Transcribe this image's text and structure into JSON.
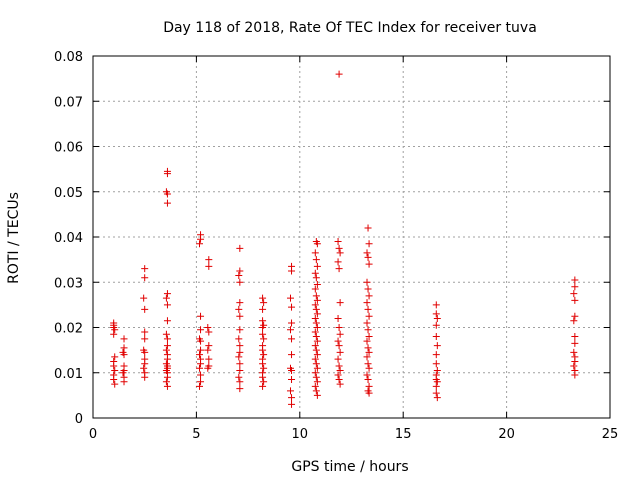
{
  "chart_data": {
    "type": "scatter",
    "title": "Day 118 of 2018, Rate Of TEC Index for receiver tuva",
    "xlabel": "GPS time / hours",
    "ylabel": "ROTI / TECUs",
    "xlim": [
      0,
      25
    ],
    "ylim": [
      0,
      0.08
    ],
    "xticks": [
      0,
      5,
      10,
      15,
      20,
      25
    ],
    "yticks": [
      0,
      0.01,
      0.02,
      0.03,
      0.04,
      0.05,
      0.06,
      0.07,
      0.08
    ],
    "xtick_labels": [
      "0",
      "5",
      "10",
      "15",
      "20",
      "25"
    ],
    "ytick_labels": [
      "0",
      "0.01",
      "0.02",
      "0.03",
      "0.04",
      "0.05",
      "0.06",
      "0.07",
      "0.08"
    ],
    "grid": true,
    "marker": "+",
    "color": "#e00000",
    "series": [
      {
        "points": [
          [
            1.0,
            0.0205
          ],
          [
            1.0,
            0.02
          ],
          [
            1.05,
            0.0195
          ],
          [
            1.0,
            0.0185
          ],
          [
            1.05,
            0.0135
          ],
          [
            1.0,
            0.0125
          ],
          [
            1.0,
            0.0115
          ],
          [
            1.05,
            0.0105
          ],
          [
            1.0,
            0.0095
          ],
          [
            1.0,
            0.0085
          ],
          [
            1.05,
            0.0075
          ],
          [
            1.0,
            0.021
          ],
          [
            1.5,
            0.0175
          ],
          [
            1.5,
            0.0155
          ],
          [
            1.45,
            0.0145
          ],
          [
            1.5,
            0.014
          ],
          [
            1.5,
            0.0115
          ],
          [
            1.5,
            0.0105
          ],
          [
            1.45,
            0.01
          ],
          [
            1.5,
            0.009
          ],
          [
            1.5,
            0.008
          ],
          [
            2.5,
            0.033
          ],
          [
            2.5,
            0.031
          ],
          [
            2.45,
            0.0265
          ],
          [
            2.5,
            0.024
          ],
          [
            2.5,
            0.019
          ],
          [
            2.5,
            0.0175
          ],
          [
            2.45,
            0.015
          ],
          [
            2.5,
            0.0145
          ],
          [
            2.5,
            0.013
          ],
          [
            2.5,
            0.012
          ],
          [
            2.45,
            0.011
          ],
          [
            2.5,
            0.01
          ],
          [
            2.5,
            0.009
          ],
          [
            3.6,
            0.0545
          ],
          [
            3.6,
            0.054
          ],
          [
            3.55,
            0.05
          ],
          [
            3.6,
            0.0495
          ],
          [
            3.6,
            0.0475
          ],
          [
            3.6,
            0.0275
          ],
          [
            3.55,
            0.0265
          ],
          [
            3.6,
            0.025
          ],
          [
            3.6,
            0.0215
          ],
          [
            3.55,
            0.0185
          ],
          [
            3.6,
            0.0175
          ],
          [
            3.6,
            0.016
          ],
          [
            3.55,
            0.015
          ],
          [
            3.6,
            0.014
          ],
          [
            3.6,
            0.013
          ],
          [
            3.55,
            0.012
          ],
          [
            3.6,
            0.0115
          ],
          [
            3.6,
            0.011
          ],
          [
            3.55,
            0.0105
          ],
          [
            3.6,
            0.01
          ],
          [
            3.6,
            0.009
          ],
          [
            3.55,
            0.008
          ],
          [
            3.6,
            0.007
          ],
          [
            5.2,
            0.0405
          ],
          [
            5.2,
            0.0395
          ],
          [
            5.15,
            0.0385
          ],
          [
            5.2,
            0.0225
          ],
          [
            5.2,
            0.0195
          ],
          [
            5.15,
            0.0175
          ],
          [
            5.2,
            0.017
          ],
          [
            5.2,
            0.015
          ],
          [
            5.15,
            0.014
          ],
          [
            5.2,
            0.013
          ],
          [
            5.2,
            0.012
          ],
          [
            5.15,
            0.011
          ],
          [
            5.2,
            0.0095
          ],
          [
            5.2,
            0.008
          ],
          [
            5.15,
            0.007
          ],
          [
            5.6,
            0.035
          ],
          [
            5.6,
            0.0335
          ],
          [
            5.55,
            0.02
          ],
          [
            5.6,
            0.019
          ],
          [
            5.6,
            0.016
          ],
          [
            5.55,
            0.015
          ],
          [
            5.6,
            0.013
          ],
          [
            5.6,
            0.0115
          ],
          [
            5.55,
            0.011
          ],
          [
            7.1,
            0.0375
          ],
          [
            7.1,
            0.0325
          ],
          [
            7.05,
            0.0315
          ],
          [
            7.1,
            0.03
          ],
          [
            7.1,
            0.0255
          ],
          [
            7.05,
            0.024
          ],
          [
            7.1,
            0.0225
          ],
          [
            7.1,
            0.0195
          ],
          [
            7.05,
            0.0175
          ],
          [
            7.1,
            0.016
          ],
          [
            7.1,
            0.0145
          ],
          [
            7.05,
            0.0135
          ],
          [
            7.1,
            0.012
          ],
          [
            7.1,
            0.0105
          ],
          [
            7.05,
            0.009
          ],
          [
            7.1,
            0.008
          ],
          [
            7.1,
            0.0065
          ],
          [
            8.2,
            0.0265
          ],
          [
            8.25,
            0.0255
          ],
          [
            8.2,
            0.024
          ],
          [
            8.2,
            0.0215
          ],
          [
            8.25,
            0.0205
          ],
          [
            8.2,
            0.02
          ],
          [
            8.2,
            0.0185
          ],
          [
            8.25,
            0.0175
          ],
          [
            8.2,
            0.016
          ],
          [
            8.2,
            0.015
          ],
          [
            8.25,
            0.014
          ],
          [
            8.2,
            0.013
          ],
          [
            8.2,
            0.012
          ],
          [
            8.25,
            0.011
          ],
          [
            8.2,
            0.01
          ],
          [
            8.2,
            0.009
          ],
          [
            8.25,
            0.008
          ],
          [
            8.2,
            0.007
          ],
          [
            9.6,
            0.0335
          ],
          [
            9.6,
            0.0325
          ],
          [
            9.55,
            0.0265
          ],
          [
            9.6,
            0.0245
          ],
          [
            9.6,
            0.021
          ],
          [
            9.55,
            0.0195
          ],
          [
            9.6,
            0.0175
          ],
          [
            9.6,
            0.014
          ],
          [
            9.55,
            0.011
          ],
          [
            9.6,
            0.0105
          ],
          [
            9.6,
            0.0085
          ],
          [
            9.55,
            0.006
          ],
          [
            9.6,
            0.0045
          ],
          [
            9.6,
            0.003
          ],
          [
            10.8,
            0.039
          ],
          [
            10.85,
            0.0385
          ],
          [
            10.75,
            0.0365
          ],
          [
            10.8,
            0.035
          ],
          [
            10.85,
            0.0335
          ],
          [
            10.75,
            0.032
          ],
          [
            10.8,
            0.031
          ],
          [
            10.85,
            0.0295
          ],
          [
            10.75,
            0.0285
          ],
          [
            10.8,
            0.027
          ],
          [
            10.85,
            0.026
          ],
          [
            10.75,
            0.025
          ],
          [
            10.8,
            0.024
          ],
          [
            10.85,
            0.023
          ],
          [
            10.75,
            0.022
          ],
          [
            10.8,
            0.021
          ],
          [
            10.85,
            0.02
          ],
          [
            10.75,
            0.019
          ],
          [
            10.8,
            0.018
          ],
          [
            10.85,
            0.017
          ],
          [
            10.75,
            0.016
          ],
          [
            10.8,
            0.015
          ],
          [
            10.85,
            0.014
          ],
          [
            10.75,
            0.013
          ],
          [
            10.8,
            0.012
          ],
          [
            10.85,
            0.011
          ],
          [
            10.75,
            0.01
          ],
          [
            10.8,
            0.009
          ],
          [
            10.85,
            0.008
          ],
          [
            10.75,
            0.007
          ],
          [
            10.8,
            0.006
          ],
          [
            10.85,
            0.005
          ],
          [
            11.9,
            0.076
          ],
          [
            11.85,
            0.039
          ],
          [
            11.9,
            0.0375
          ],
          [
            11.95,
            0.0365
          ],
          [
            11.85,
            0.0345
          ],
          [
            11.9,
            0.033
          ],
          [
            11.95,
            0.0255
          ],
          [
            11.85,
            0.022
          ],
          [
            11.9,
            0.02
          ],
          [
            11.95,
            0.0185
          ],
          [
            11.85,
            0.017
          ],
          [
            11.9,
            0.016
          ],
          [
            11.95,
            0.0145
          ],
          [
            11.85,
            0.013
          ],
          [
            11.9,
            0.0115
          ],
          [
            11.95,
            0.0105
          ],
          [
            11.85,
            0.0095
          ],
          [
            11.9,
            0.0085
          ],
          [
            11.95,
            0.0075
          ],
          [
            13.3,
            0.042
          ],
          [
            13.35,
            0.0385
          ],
          [
            13.25,
            0.0365
          ],
          [
            13.3,
            0.0355
          ],
          [
            13.35,
            0.034
          ],
          [
            13.25,
            0.03
          ],
          [
            13.3,
            0.0285
          ],
          [
            13.35,
            0.027
          ],
          [
            13.25,
            0.0255
          ],
          [
            13.3,
            0.024
          ],
          [
            13.35,
            0.0225
          ],
          [
            13.25,
            0.021
          ],
          [
            13.3,
            0.0195
          ],
          [
            13.35,
            0.018
          ],
          [
            13.25,
            0.017
          ],
          [
            13.3,
            0.0155
          ],
          [
            13.35,
            0.0145
          ],
          [
            13.25,
            0.0135
          ],
          [
            13.3,
            0.012
          ],
          [
            13.35,
            0.011
          ],
          [
            13.25,
            0.0095
          ],
          [
            13.3,
            0.0085
          ],
          [
            13.35,
            0.007
          ],
          [
            13.3,
            0.006
          ],
          [
            13.35,
            0.0055
          ],
          [
            16.6,
            0.025
          ],
          [
            16.6,
            0.023
          ],
          [
            16.65,
            0.022
          ],
          [
            16.6,
            0.0205
          ],
          [
            16.6,
            0.018
          ],
          [
            16.65,
            0.016
          ],
          [
            16.6,
            0.014
          ],
          [
            16.6,
            0.012
          ],
          [
            16.65,
            0.0105
          ],
          [
            16.6,
            0.0095
          ],
          [
            16.6,
            0.0085
          ],
          [
            16.65,
            0.008
          ],
          [
            16.6,
            0.007
          ],
          [
            16.6,
            0.0055
          ],
          [
            16.65,
            0.0045
          ],
          [
            23.3,
            0.0305
          ],
          [
            23.3,
            0.029
          ],
          [
            23.25,
            0.0275
          ],
          [
            23.3,
            0.026
          ],
          [
            23.3,
            0.0225
          ],
          [
            23.25,
            0.0215
          ],
          [
            23.3,
            0.018
          ],
          [
            23.3,
            0.0165
          ],
          [
            23.25,
            0.0145
          ],
          [
            23.3,
            0.0135
          ],
          [
            23.3,
            0.0125
          ],
          [
            23.25,
            0.0115
          ],
          [
            23.3,
            0.0105
          ],
          [
            23.3,
            0.0095
          ]
        ]
      }
    ]
  }
}
